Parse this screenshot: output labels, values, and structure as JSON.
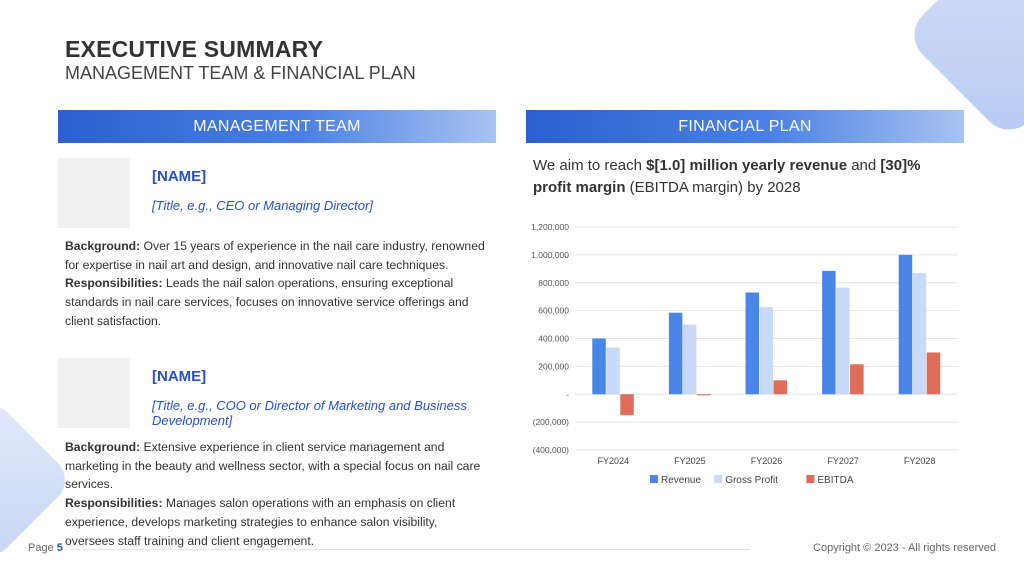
{
  "header": {
    "title": "EXECUTIVE SUMMARY",
    "subtitle": "MANAGEMENT TEAM & FINANCIAL PLAN"
  },
  "management": {
    "heading": "MANAGEMENT TEAM",
    "members": [
      {
        "name": "[NAME]",
        "title": "[Title, e.g., CEO or Managing Director]",
        "background_label": "Background:",
        "background": " Over 15 years of experience in the nail care industry, renowned for expertise in nail art and design, and innovative nail care techniques.",
        "responsibilities_label": "Responsibilities:",
        "responsibilities": " Leads the nail salon operations, ensuring exceptional standards in nail care services, focuses on innovative service offerings and client satisfaction."
      },
      {
        "name": "[NAME]",
        "title": "[Title, e.g., COO or Director of Marketing and Business Development]",
        "background_label": "Background:",
        "background": " Extensive experience in client service management and marketing in the beauty and wellness sector, with a special focus on nail care services.",
        "responsibilities_label": "Responsibilities:",
        "responsibilities": " Manages salon operations with an emphasis on client experience, develops marketing strategies to enhance salon visibility, oversees staff training and client engagement."
      }
    ]
  },
  "financial": {
    "heading": "FINANCIAL PLAN",
    "text_1": "We aim to reach ",
    "text_2": "$[1.0] million yearly revenue",
    "text_3": " and ",
    "text_4": "[30]%",
    "text_5": " profit margin",
    "text_6": " (EBITDA margin) by 2028"
  },
  "chart_data": {
    "type": "bar",
    "categories": [
      "FY2024",
      "FY2025",
      "FY2026",
      "FY2027",
      "FY2028"
    ],
    "series": [
      {
        "name": "Revenue",
        "color": "#4a86e8",
        "values": [
          400000,
          585000,
          730000,
          885000,
          1000000
        ]
      },
      {
        "name": "Gross Profit",
        "color": "#c9daf8",
        "values": [
          335000,
          500000,
          625000,
          765000,
          870000
        ]
      },
      {
        "name": "EBITDA",
        "color": "#e06c5a",
        "values": [
          -150000,
          -8000,
          100000,
          215000,
          300000
        ]
      }
    ],
    "ylim": [
      -400000,
      1200000
    ],
    "yticks": [
      1200000,
      1000000,
      800000,
      600000,
      400000,
      200000,
      0,
      -200000,
      -400000
    ],
    "ytick_labels": [
      "1,200,000",
      "1,000,000",
      "800,000",
      "600,000",
      "400,000",
      "200,000",
      "-",
      "(200,000)",
      "(400,000)"
    ],
    "grid": true,
    "legend": "bottom"
  },
  "footer": {
    "page_label": "Page ",
    "page_number": "5",
    "copyright": "Copyright © 2023 - All rights reserved"
  }
}
